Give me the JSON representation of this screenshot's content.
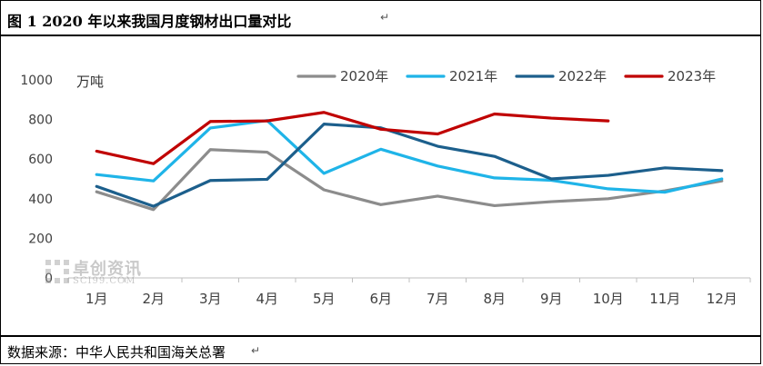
{
  "figure": {
    "title": "图 1  2020 年以来我国月度钢材出口量对比",
    "source": "数据来源：中华人民共和国海关总署",
    "return_mark": "↵"
  },
  "watermark": {
    "text": "卓创资讯",
    "sub": "SCI99.COM"
  },
  "chart_data": {
    "type": "line",
    "title": "2020 年以来我国月度钢材出口量对比",
    "unit_label": "万吨",
    "categories": [
      "1月",
      "2月",
      "3月",
      "4月",
      "5月",
      "6月",
      "7月",
      "8月",
      "9月",
      "10月",
      "11月",
      "12月"
    ],
    "ylim": [
      0,
      1000
    ],
    "yticks": [
      0,
      200,
      400,
      600,
      800,
      1000
    ],
    "grid": false,
    "legend_placement": "top",
    "series": [
      {
        "name": "2020年",
        "color": "#8c8c8c",
        "values": [
          435,
          345,
          648,
          635,
          445,
          370,
          413,
          365,
          385,
          400,
          440,
          490
        ]
      },
      {
        "name": "2021年",
        "color": "#1fb4e8",
        "values": [
          522,
          490,
          757,
          795,
          528,
          650,
          565,
          505,
          493,
          450,
          433,
          500
        ]
      },
      {
        "name": "2022年",
        "color": "#1c5f8c",
        "values": [
          462,
          362,
          492,
          498,
          777,
          758,
          665,
          614,
          500,
          518,
          556,
          542
        ]
      },
      {
        "name": "2023年",
        "color": "#c00000",
        "values": [
          640,
          577,
          790,
          793,
          836,
          751,
          727,
          828,
          807,
          793,
          null,
          null
        ]
      }
    ]
  }
}
